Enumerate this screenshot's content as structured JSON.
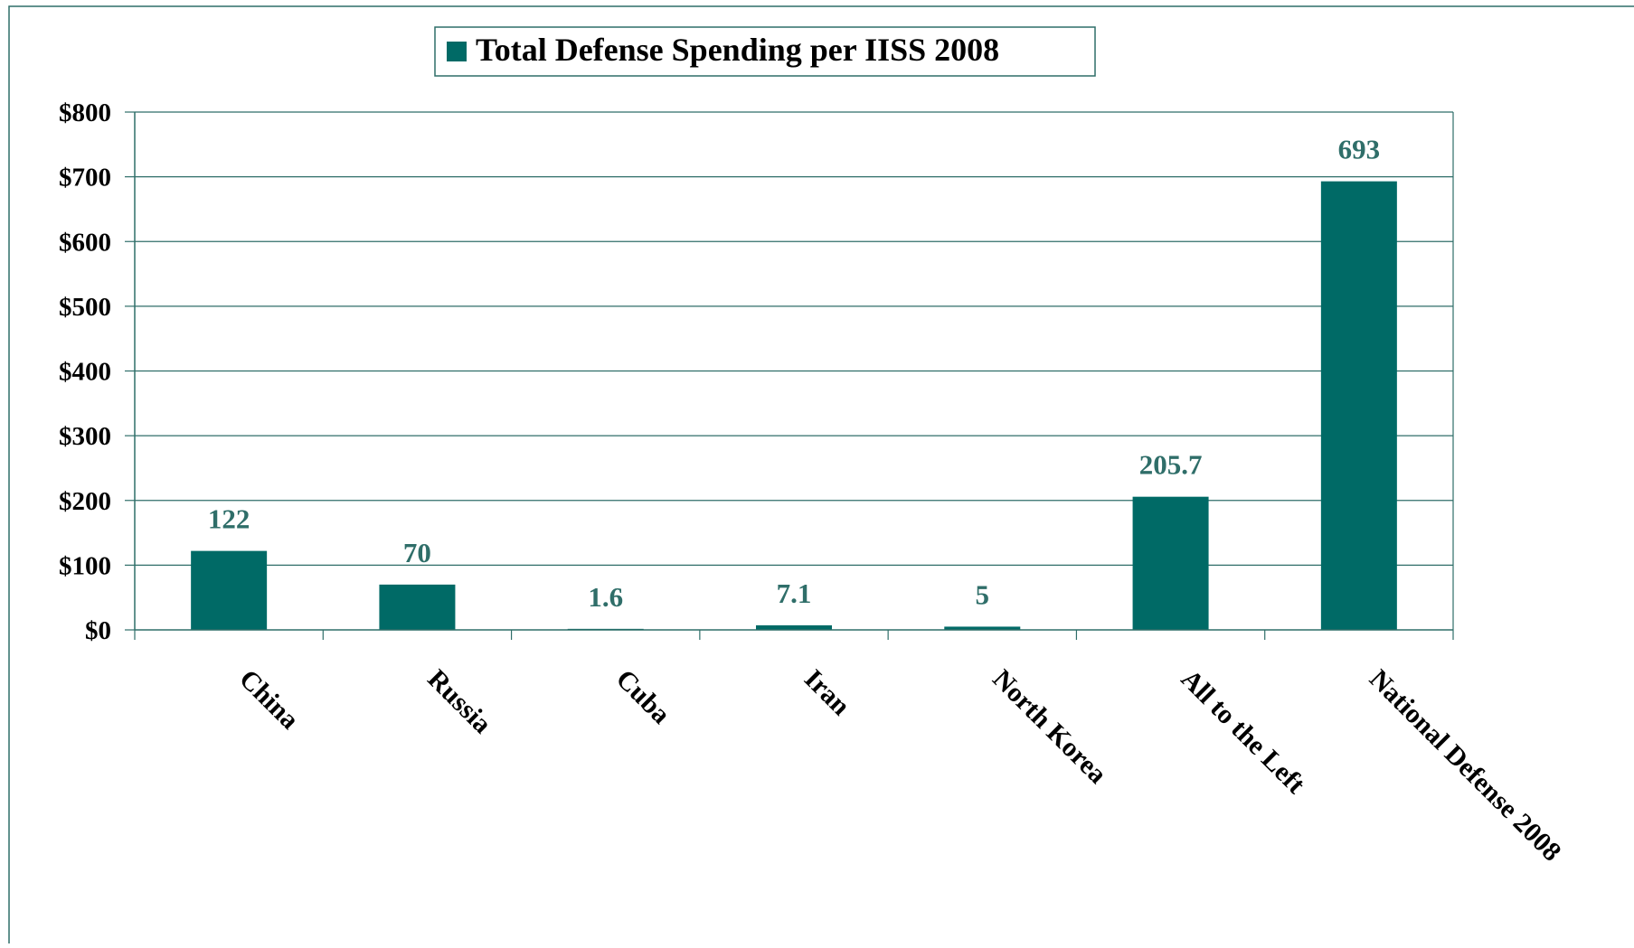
{
  "chart_data": {
    "type": "bar",
    "title": "",
    "xlabel": "",
    "ylabel": "",
    "categories": [
      "China",
      "Russia",
      "Cuba",
      "Iran",
      "North Korea",
      "All to the Left",
      "National Defense 2008"
    ],
    "series": [
      {
        "name": "Total Defense Spending per IISS 2008",
        "values": [
          122,
          70,
          1.6,
          7.1,
          5,
          205.7,
          693
        ],
        "labels": [
          "122",
          "70",
          "1.6",
          "7.1",
          "5",
          "205.7",
          "693"
        ]
      }
    ],
    "ylim": [
      0,
      800
    ],
    "yticks": [
      0,
      100,
      200,
      300,
      400,
      500,
      600,
      700,
      800
    ],
    "ytick_labels": [
      "$0",
      "$100",
      "$200",
      "$300",
      "$400",
      "$500",
      "$600",
      "$700",
      "$800"
    ],
    "grid": true,
    "legend": "top-center"
  },
  "colors": {
    "bar": "#006a66",
    "data_label": "#2f6e69",
    "text": "#000000",
    "grid": "#2f6e69",
    "frame": "#2f6e69"
  }
}
